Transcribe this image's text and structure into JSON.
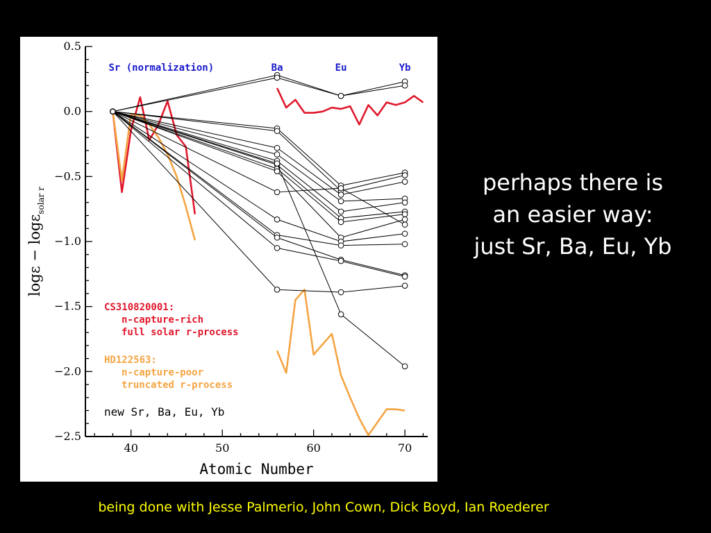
{
  "slide": {
    "text_lines": [
      "perhaps there is",
      "an easier way:",
      "just Sr, Ba, Eu, Yb"
    ],
    "credits": "being done with Jesse Palmerio, John Cown, Dick Boyd, Ian Roederer"
  },
  "colors": {
    "background": "#000000",
    "text": "#ffffff",
    "credits": "#ffff00",
    "label_blue": "#1a1acc",
    "red": "#e0182c",
    "orange": "#f5a442",
    "black": "#000000"
  },
  "chart_data": {
    "type": "line",
    "xlabel": "Atomic Number",
    "ylabel_main": "logε −  logε",
    "ylabel_sub": "solar r",
    "xlim": [
      35,
      72.5
    ],
    "ylim": [
      -2.5,
      0.5
    ],
    "x_ticks": [
      40,
      50,
      60,
      70
    ],
    "x_tick_labels": [
      "40",
      "50",
      "60",
      "70"
    ],
    "y_ticks": [
      0.5,
      0.0,
      -0.5,
      -1.0,
      -1.5,
      -2.0,
      -2.5
    ],
    "y_tick_labels": [
      "0.5",
      "0.0",
      "−0.5",
      "−1.0",
      "−1.5",
      "−2.0",
      "−2.5"
    ],
    "element_labels": [
      {
        "text": "Sr (normalization)",
        "x": 38
      },
      {
        "text": "Ba",
        "x": 56
      },
      {
        "text": "Eu",
        "x": 63
      },
      {
        "text": "Yb",
        "x": 70
      }
    ],
    "legend": [
      {
        "lines": [
          "CS310820001:",
          "n-capture-rich",
          "full solar r-process"
        ],
        "color": "#e0182c"
      },
      {
        "lines": [
          "HD122563:",
          "n-capture-poor",
          "truncated r-process"
        ],
        "color": "#f5a442"
      },
      {
        "lines": [
          "new Sr, Ba, Eu, Yb"
        ],
        "color": "#000000"
      }
    ],
    "sr_point": {
      "x": 38,
      "y": 0.0
    },
    "new_stars_x": [
      56,
      63,
      70
    ],
    "new_stars": [
      [
        0.28,
        0.12,
        0.23
      ],
      [
        0.26,
        0.12,
        0.2
      ],
      [
        -0.13,
        -0.57,
        -0.47
      ],
      [
        -0.15,
        -0.61,
        -0.49
      ],
      [
        -0.28,
        -0.64,
        -0.54
      ],
      [
        -0.33,
        -0.69,
        -0.67
      ],
      [
        -0.38,
        -0.77,
        -0.7
      ],
      [
        -0.41,
        -0.82,
        -0.77
      ],
      [
        -0.44,
        -0.85,
        -0.79
      ],
      [
        -0.46,
        -0.97,
        -0.83
      ],
      [
        -0.62,
        -0.59,
        -0.87
      ],
      [
        -0.83,
        -1.0,
        -0.94
      ],
      [
        -0.95,
        -1.03,
        -1.02
      ],
      [
        -0.97,
        -1.14,
        -1.26
      ],
      [
        -1.05,
        -1.15,
        -1.27
      ],
      [
        -1.37,
        -1.39,
        -1.34
      ],
      [
        -0.4,
        -1.56,
        -1.96
      ]
    ],
    "series": [
      {
        "name": "CS310820001",
        "color": "#e0182c",
        "segments": [
          {
            "x": [
              38,
              39,
              40,
              41,
              42,
              43,
              44,
              45,
              46,
              47
            ],
            "y": [
              0.0,
              -0.62,
              -0.14,
              0.11,
              -0.22,
              -0.1,
              0.08,
              -0.18,
              -0.27,
              -0.79
            ]
          },
          {
            "x": [
              56,
              57,
              58,
              59,
              60,
              61,
              62,
              63,
              64,
              65,
              66,
              67,
              68,
              69,
              70,
              71,
              72
            ],
            "y": [
              0.18,
              0.03,
              0.09,
              -0.01,
              -0.01,
              0.0,
              0.03,
              0.02,
              0.04,
              -0.1,
              0.05,
              -0.03,
              0.07,
              0.05,
              0.07,
              0.12,
              0.07
            ]
          }
        ]
      },
      {
        "name": "HD122563",
        "color": "#f5a442",
        "segments": [
          {
            "x": [
              38,
              39,
              40,
              41,
              42,
              43,
              44,
              45,
              46,
              47
            ],
            "y": [
              0.0,
              -0.53,
              -0.02,
              -0.03,
              -0.1,
              -0.2,
              -0.33,
              -0.5,
              -0.73,
              -0.99
            ]
          },
          {
            "x": [
              56,
              57,
              58,
              59,
              60,
              61,
              62,
              63,
              64,
              65,
              66,
              67,
              68,
              69,
              70
            ],
            "y": [
              -1.84,
              -2.01,
              -1.45,
              -1.37,
              -1.87,
              -1.79,
              -1.71,
              -2.03,
              -2.2,
              -2.36,
              -2.49,
              -2.39,
              -2.29,
              -2.29,
              -2.3
            ]
          }
        ]
      }
    ]
  }
}
